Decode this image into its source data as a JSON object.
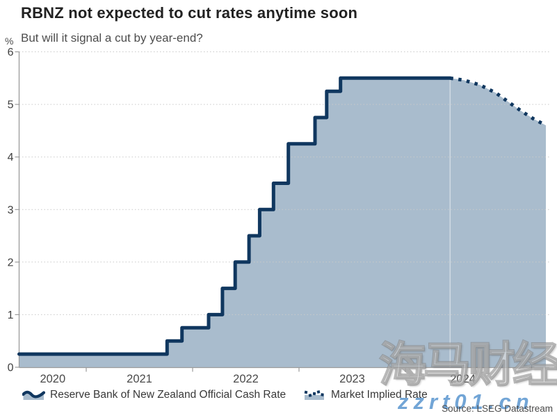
{
  "chart_data": {
    "type": "area",
    "title": "RBNZ not expected to cut rates anytime soon",
    "subtitle": "But will it signal a cut by year-end?",
    "ylabel": "%",
    "xlabel": "",
    "xlim": [
      2020.369,
      2025.353
    ],
    "ylim": [
      0,
      6
    ],
    "y_ticks": [
      0,
      1,
      2,
      3,
      4,
      5,
      6
    ],
    "x_ticks": [
      2021,
      2022,
      2023,
      2024
    ],
    "x_year_labels": [
      {
        "label": "2020",
        "t": 2020.685
      },
      {
        "label": "2021",
        "t": 2021.5
      },
      {
        "label": "2022",
        "t": 2022.5
      },
      {
        "label": "2023",
        "t": 2023.5
      },
      {
        "label": "2024",
        "t": 2024.54
      }
    ],
    "grid": "dotted-horizontal",
    "legend_position": "bottom",
    "series": [
      {
        "name": "Reserve Bank of New Zealand Official Cash Rate",
        "style": "step-solid-area",
        "steps": [
          [
            2020.369,
            0.25
          ],
          [
            2021.76,
            0.5
          ],
          [
            2021.9,
            0.75
          ],
          [
            2022.15,
            1.0
          ],
          [
            2022.28,
            1.5
          ],
          [
            2022.4,
            2.0
          ],
          [
            2022.53,
            2.5
          ],
          [
            2022.63,
            3.0
          ],
          [
            2022.76,
            3.5
          ],
          [
            2022.9,
            4.25
          ],
          [
            2023.15,
            4.75
          ],
          [
            2023.26,
            5.25
          ],
          [
            2023.39,
            5.5
          ]
        ],
        "end_t": 2024.42
      },
      {
        "name": "Market Implied Rate",
        "style": "dotted-line-area",
        "points": [
          [
            2024.42,
            5.5
          ],
          [
            2024.55,
            5.46
          ],
          [
            2024.7,
            5.37
          ],
          [
            2024.85,
            5.22
          ],
          [
            2025.0,
            5.0
          ],
          [
            2025.1,
            4.86
          ],
          [
            2025.2,
            4.73
          ],
          [
            2025.32,
            4.6
          ]
        ]
      }
    ],
    "colors": {
      "line": "#10375f",
      "fill": "#a9bccd",
      "grid": "#c9c9c9",
      "axis": "#9b9b9b"
    }
  },
  "footer": {
    "source": "Source: LSEG Datastream"
  },
  "watermarks": {
    "cjk": "海马财经",
    "site": "zzrt01.cn"
  }
}
